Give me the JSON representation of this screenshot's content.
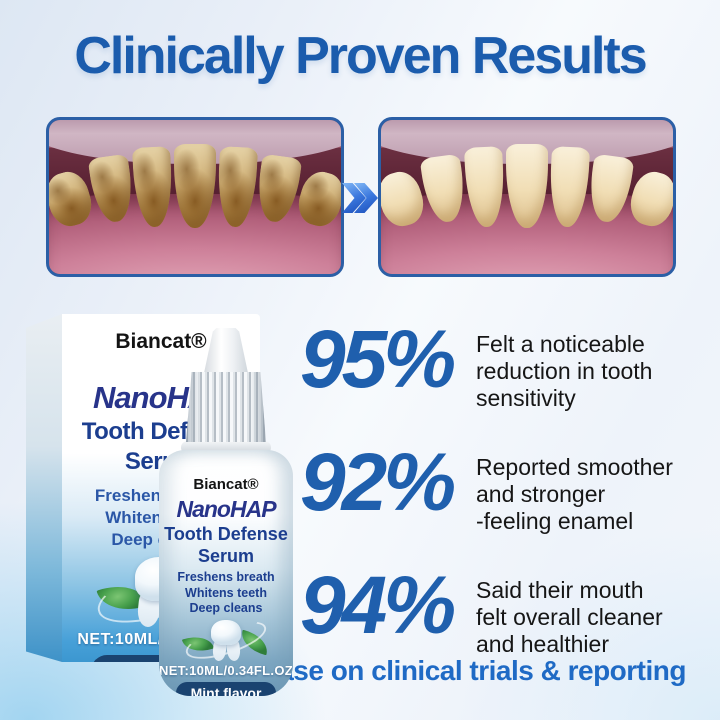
{
  "page": {
    "title": "Clinically Proven Results",
    "footnote": "*Base on clinical trials & reporting",
    "colors": {
      "title_blue": "#1b5cad",
      "stat_blue": "#1f5fad",
      "footnote_blue": "#1f6ac5",
      "product_navy": "#1c3e8f",
      "flavor_pill_navy": "#1a4370",
      "photo_border_blue": "#2b5fa6"
    }
  },
  "comparison": {
    "arrow_icon": "double-chevron-right"
  },
  "product": {
    "brand": "Biancat®",
    "name": "NanoHAP",
    "line": "Tooth Defense",
    "form": "Serum",
    "features": [
      "Freshens breath",
      "Whitens teeth",
      "Deep cleans"
    ],
    "net_weight": "NET:10ML/0.34FL.OZ",
    "flavor_badge": "Mint flavor",
    "icons": [
      "tooth-icon",
      "mint-leaf-icon"
    ]
  },
  "stats": [
    {
      "value": "95%",
      "description": "Felt a noticeable\nreduction in tooth\nsensitivity"
    },
    {
      "value": "92%",
      "description": "Reported smoother\nand stronger\n-feeling enamel"
    },
    {
      "value": "94%",
      "description": "Said their mouth\nfelt overall cleaner\nand healthier"
    }
  ]
}
